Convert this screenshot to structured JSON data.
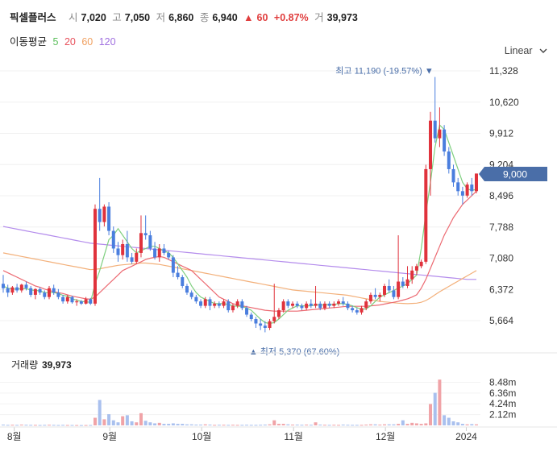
{
  "header": {
    "name": "픽셀플러스",
    "open_label": "시",
    "open": "7,020",
    "high_label": "고",
    "high": "7,050",
    "low_label": "저",
    "low": "6,860",
    "close_label": "종",
    "close": "6,940",
    "change_arrow": "▲",
    "change": "60",
    "change_pct": "+0.87%",
    "volume_label": "거",
    "volume": "39,973"
  },
  "ma_legend": {
    "label": "이동평균",
    "items": [
      {
        "period": "5",
        "color": "#5cbf5c"
      },
      {
        "period": "20",
        "color": "#e8505b"
      },
      {
        "period": "60",
        "color": "#f0a060"
      },
      {
        "period": "120",
        "color": "#a070e0"
      }
    ]
  },
  "scale_mode": "Linear",
  "scale_icon": "chevron-down-icon",
  "volume_panel": {
    "label": "거래량",
    "value": "39,973"
  },
  "colors": {
    "up": "#e0323c",
    "down": "#4a7ede",
    "vol_up": "#f0a3a7",
    "vol_down": "#a9c0ee",
    "current_tag": "#4a6ea8"
  },
  "chart_data": {
    "type": "candlestick",
    "x_tick_labels": [
      "8월",
      "9월",
      "10월",
      "11월",
      "12월",
      "2024"
    ],
    "y_tick_labels": [
      "11,328",
      "10,620",
      "9,912",
      "9,204",
      "8,496",
      "7,788",
      "7,080",
      "6,372",
      "5,664"
    ],
    "ylim": [
      5300,
      11700
    ],
    "current_price": "9,000",
    "annotations": {
      "high": {
        "text": "최고 11,190 (-19.57%)",
        "value": 11190
      },
      "low": {
        "text": "최저 5,370 (67.60%)",
        "value": 5370
      }
    },
    "volume_tick_labels": [
      "8.48m",
      "6.36m",
      "4.24m",
      "2.12m"
    ],
    "volume_max": 9.5,
    "candles": [
      [
        6500,
        6700,
        6300,
        6400
      ],
      [
        6400,
        6480,
        6200,
        6300
      ],
      [
        6300,
        6450,
        6250,
        6420
      ],
      [
        6420,
        6500,
        6300,
        6350
      ],
      [
        6350,
        6500,
        6300,
        6480
      ],
      [
        6480,
        6550,
        6350,
        6400
      ],
      [
        6400,
        6450,
        6200,
        6250
      ],
      [
        6250,
        6400,
        6150,
        6380
      ],
      [
        6380,
        6420,
        6250,
        6300
      ],
      [
        6300,
        6350,
        6150,
        6200
      ],
      [
        6200,
        6450,
        6150,
        6400
      ],
      [
        6400,
        6480,
        6250,
        6300
      ],
      [
        6300,
        6380,
        6150,
        6200
      ],
      [
        6200,
        6250,
        6050,
        6100
      ],
      [
        6100,
        6250,
        6050,
        6200
      ],
      [
        6200,
        6230,
        6050,
        6080
      ],
      [
        6080,
        6150,
        6000,
        6100
      ],
      [
        6100,
        6130,
        6020,
        6050
      ],
      [
        6050,
        6200,
        6030,
        6150
      ],
      [
        6150,
        6180,
        6020,
        6050
      ],
      [
        6050,
        8300,
        6000,
        8200
      ],
      [
        8200,
        8900,
        7700,
        7900
      ],
      [
        7900,
        8300,
        7800,
        8250
      ],
      [
        8250,
        8350,
        7600,
        7700
      ],
      [
        7700,
        7800,
        7200,
        7300
      ],
      [
        7300,
        7450,
        7000,
        7150
      ],
      [
        7150,
        7500,
        7050,
        7400
      ],
      [
        7400,
        7700,
        7000,
        7100
      ],
      [
        7100,
        7200,
        6950,
        7000
      ],
      [
        7000,
        7300,
        6950,
        7200
      ],
      [
        7200,
        8050,
        7100,
        7650
      ],
      [
        7650,
        8050,
        7500,
        7600
      ],
      [
        7600,
        7700,
        7250,
        7300
      ],
      [
        7300,
        7450,
        7050,
        7100
      ],
      [
        7100,
        7400,
        7000,
        7300
      ],
      [
        7300,
        7400,
        7150,
        7200
      ],
      [
        7200,
        7250,
        7050,
        7100
      ],
      [
        7100,
        7150,
        6650,
        6750
      ],
      [
        6750,
        6900,
        6600,
        6650
      ],
      [
        6650,
        6700,
        6400,
        6450
      ],
      [
        6450,
        6500,
        6250,
        6300
      ],
      [
        6300,
        6350,
        6150,
        6200
      ],
      [
        6200,
        6250,
        6050,
        6100
      ],
      [
        6100,
        6150,
        5950,
        6000
      ],
      [
        6000,
        6200,
        5950,
        6150
      ],
      [
        6150,
        6200,
        5900,
        6000
      ],
      [
        6000,
        6100,
        5950,
        6050
      ],
      [
        6050,
        6100,
        5950,
        6000
      ],
      [
        6000,
        6150,
        5950,
        6100
      ],
      [
        6100,
        6150,
        5850,
        5900
      ],
      [
        5900,
        6050,
        5850,
        6000
      ],
      [
        6000,
        6150,
        5950,
        6100
      ],
      [
        6100,
        6150,
        5900,
        5950
      ],
      [
        5950,
        6000,
        5750,
        5800
      ],
      [
        5800,
        5850,
        5650,
        5700
      ],
      [
        5700,
        5750,
        5500,
        5600
      ],
      [
        5600,
        5700,
        5450,
        5550
      ],
      [
        5550,
        5650,
        5400,
        5500
      ],
      [
        5500,
        5700,
        5450,
        5650
      ],
      [
        5650,
        6500,
        5600,
        5750
      ],
      [
        5750,
        5950,
        5700,
        5900
      ],
      [
        5900,
        6150,
        5850,
        6100
      ],
      [
        6100,
        6150,
        5950,
        6000
      ],
      [
        6000,
        6100,
        5950,
        6050
      ],
      [
        6050,
        6100,
        5950,
        6000
      ],
      [
        6000,
        6050,
        5900,
        5950
      ],
      [
        5950,
        6100,
        5900,
        6050
      ],
      [
        6050,
        6150,
        5950,
        6000
      ],
      [
        6000,
        6450,
        5950,
        6050
      ],
      [
        6050,
        6100,
        5900,
        5950
      ],
      [
        5950,
        6100,
        5900,
        6050
      ],
      [
        6050,
        6100,
        5950,
        6000
      ],
      [
        6000,
        6100,
        5950,
        6050
      ],
      [
        6050,
        6150,
        6000,
        6100
      ],
      [
        6100,
        6200,
        6000,
        6050
      ],
      [
        6050,
        6100,
        5900,
        5950
      ],
      [
        5950,
        6000,
        5850,
        5900
      ],
      [
        5900,
        5950,
        5800,
        5850
      ],
      [
        5850,
        6000,
        5800,
        5950
      ],
      [
        5950,
        6150,
        5900,
        6100
      ],
      [
        6100,
        6300,
        6050,
        6250
      ],
      [
        6250,
        6400,
        6150,
        6200
      ],
      [
        6200,
        6300,
        6100,
        6250
      ],
      [
        6250,
        6500,
        6200,
        6450
      ],
      [
        6450,
        6600,
        6300,
        6350
      ],
      [
        6350,
        6450,
        6150,
        6200
      ],
      [
        6200,
        7600,
        6150,
        6550
      ],
      [
        6550,
        6650,
        6400,
        6450
      ],
      [
        6450,
        6900,
        6400,
        6600
      ],
      [
        6600,
        6900,
        6500,
        6800
      ],
      [
        6800,
        6950,
        6700,
        6900
      ],
      [
        6900,
        7050,
        6850,
        7000
      ],
      [
        7000,
        9200,
        6950,
        9100
      ],
      [
        9100,
        10400,
        8500,
        10200
      ],
      [
        10200,
        11190,
        9700,
        9800
      ],
      [
        9800,
        10500,
        9600,
        10000
      ],
      [
        10000,
        10100,
        9400,
        9500
      ],
      [
        9500,
        9600,
        9000,
        9100
      ],
      [
        9100,
        9200,
        8700,
        8800
      ],
      [
        8800,
        8900,
        8500,
        8600
      ],
      [
        8600,
        8700,
        8300,
        8500
      ],
      [
        8500,
        8800,
        8450,
        8750
      ],
      [
        8750,
        8900,
        8500,
        8600
      ],
      [
        8600,
        9000,
        8550,
        9000
      ]
    ],
    "ma5": [
      6450,
      6400,
      6380,
      6380,
      6390,
      6390,
      6360,
      6350,
      6340,
      6300,
      6300,
      6300,
      6280,
      6240,
      6220,
      6160,
      6130,
      6100,
      6090,
      6080,
      6500,
      6800,
      7150,
      7500,
      7600,
      7750,
      7600,
      7450,
      7300,
      7200,
      7250,
      7300,
      7350,
      7350,
      7300,
      7250,
      7200,
      7100,
      6950,
      6800,
      6650,
      6450,
      6300,
      6200,
      6150,
      6100,
      6050,
      6050,
      6050,
      6030,
      6000,
      5990,
      5990,
      5950,
      5900,
      5800,
      5700,
      5620,
      5600,
      5620,
      5700,
      5800,
      5900,
      5950,
      6000,
      6000,
      6000,
      6000,
      6020,
      6020,
      6020,
      6030,
      6030,
      6050,
      6050,
      6030,
      6000,
      5960,
      5920,
      5930,
      6000,
      6100,
      6200,
      6250,
      6300,
      6350,
      6400,
      6450,
      6500,
      6600,
      6700,
      7300,
      8100,
      8800,
      9600,
      10100,
      10000,
      9700,
      9400,
      9100,
      8800,
      8650,
      8620,
      8640
    ],
    "ma20": [
      6800,
      6750,
      6700,
      6650,
      6600,
      6550,
      6500,
      6450,
      6420,
      6380,
      6350,
      6320,
      6300,
      6280,
      6250,
      6220,
      6200,
      6180,
      6160,
      6150,
      6200,
      6300,
      6400,
      6500,
      6600,
      6700,
      6800,
      6850,
      6900,
      6950,
      7000,
      7050,
      7080,
      7100,
      7120,
      7100,
      7050,
      7000,
      6950,
      6900,
      6850,
      6800,
      6700,
      6600,
      6500,
      6400,
      6300,
      6200,
      6150,
      6100,
      6050,
      6020,
      6000,
      5980,
      5960,
      5940,
      5920,
      5900,
      5890,
      5880,
      5880,
      5880,
      5880,
      5880,
      5880,
      5890,
      5900,
      5910,
      5920,
      5930,
      5940,
      5950,
      5960,
      5970,
      5980,
      5990,
      5990,
      5990,
      5990,
      5990,
      6000,
      6010,
      6020,
      6040,
      6060,
      6080,
      6100,
      6130,
      6160,
      6200,
      6250,
      6400,
      6600,
      6850,
      7100,
      7350,
      7600,
      7800,
      8000,
      8150,
      8300,
      8400,
      8500,
      8600
    ],
    "ma60": [
      7200,
      7180,
      7160,
      7140,
      7120,
      7100,
      7080,
      7060,
      7040,
      7020,
      7000,
      6980,
      6960,
      6940,
      6920,
      6900,
      6880,
      6860,
      6840,
      6820,
      6830,
      6840,
      6860,
      6880,
      6900,
      6920,
      6930,
      6940,
      6950,
      6960,
      6970,
      6970,
      6960,
      6950,
      6940,
      6920,
      6900,
      6880,
      6860,
      6840,
      6820,
      6800,
      6780,
      6760,
      6740,
      6720,
      6700,
      6680,
      6660,
      6640,
      6620,
      6600,
      6580,
      6560,
      6540,
      6520,
      6500,
      6480,
      6460,
      6440,
      6420,
      6400,
      6380,
      6360,
      6350,
      6340,
      6330,
      6320,
      6310,
      6300,
      6290,
      6280,
      6270,
      6260,
      6250,
      6240,
      6220,
      6200,
      6180,
      6160,
      6140,
      6120,
      6100,
      6090,
      6080,
      6070,
      6060,
      6055,
      6050,
      6055,
      6060,
      6080,
      6120,
      6180,
      6250,
      6320,
      6380,
      6440,
      6500,
      6560,
      6620,
      6680,
      6740,
      6800
    ],
    "ma120": [
      7800,
      7780,
      7760,
      7740,
      7720,
      7700,
      7680,
      7660,
      7640,
      7620,
      7600,
      7580,
      7560,
      7540,
      7520,
      7500,
      7480,
      7460,
      7440,
      7420,
      7410,
      7400,
      7390,
      7380,
      7370,
      7360,
      7350,
      7340,
      7330,
      7320,
      7310,
      7300,
      7290,
      7280,
      7270,
      7260,
      7250,
      7240,
      7230,
      7220,
      7210,
      7200,
      7190,
      7180,
      7170,
      7160,
      7150,
      7140,
      7130,
      7120,
      7110,
      7100,
      7090,
      7080,
      7070,
      7060,
      7050,
      7040,
      7030,
      7020,
      7010,
      7000,
      6990,
      6980,
      6970,
      6960,
      6950,
      6940,
      6930,
      6920,
      6910,
      6900,
      6890,
      6880,
      6870,
      6860,
      6850,
      6840,
      6830,
      6820,
      6810,
      6800,
      6790,
      6780,
      6770,
      6760,
      6750,
      6740,
      6730,
      6720,
      6710,
      6700,
      6690,
      6680,
      6670,
      6660,
      6650,
      6640,
      6630,
      6620,
      6610,
      6600,
      6600,
      6600
    ],
    "volume": [
      0.15,
      0.1,
      0.12,
      0.1,
      0.15,
      0.12,
      0.1,
      0.1,
      0.08,
      0.1,
      0.12,
      0.1,
      0.08,
      0.1,
      0.08,
      0.08,
      0.07,
      0.06,
      0.07,
      0.08,
      1.5,
      5.0,
      1.2,
      2.2,
      1.0,
      0.6,
      1.8,
      2.0,
      0.8,
      0.6,
      2.4,
      0.9,
      0.6,
      0.4,
      0.5,
      0.3,
      0.3,
      0.4,
      0.3,
      0.3,
      0.2,
      0.2,
      0.15,
      0.15,
      0.2,
      0.15,
      0.1,
      0.12,
      0.12,
      0.1,
      0.12,
      0.1,
      0.1,
      0.12,
      0.1,
      0.1,
      0.12,
      0.15,
      0.2,
      1.0,
      0.3,
      0.3,
      0.2,
      0.15,
      0.15,
      0.12,
      0.15,
      0.12,
      0.6,
      0.15,
      0.12,
      0.1,
      0.12,
      0.1,
      0.15,
      0.12,
      0.1,
      0.1,
      0.1,
      0.15,
      0.2,
      0.2,
      0.15,
      0.2,
      0.2,
      0.2,
      0.3,
      1.0,
      0.3,
      0.5,
      0.4,
      0.3,
      0.4,
      4.2,
      6.4,
      9.0,
      2.0,
      1.5,
      0.8,
      0.6,
      0.3,
      0.2,
      0.25,
      0.2
    ]
  }
}
